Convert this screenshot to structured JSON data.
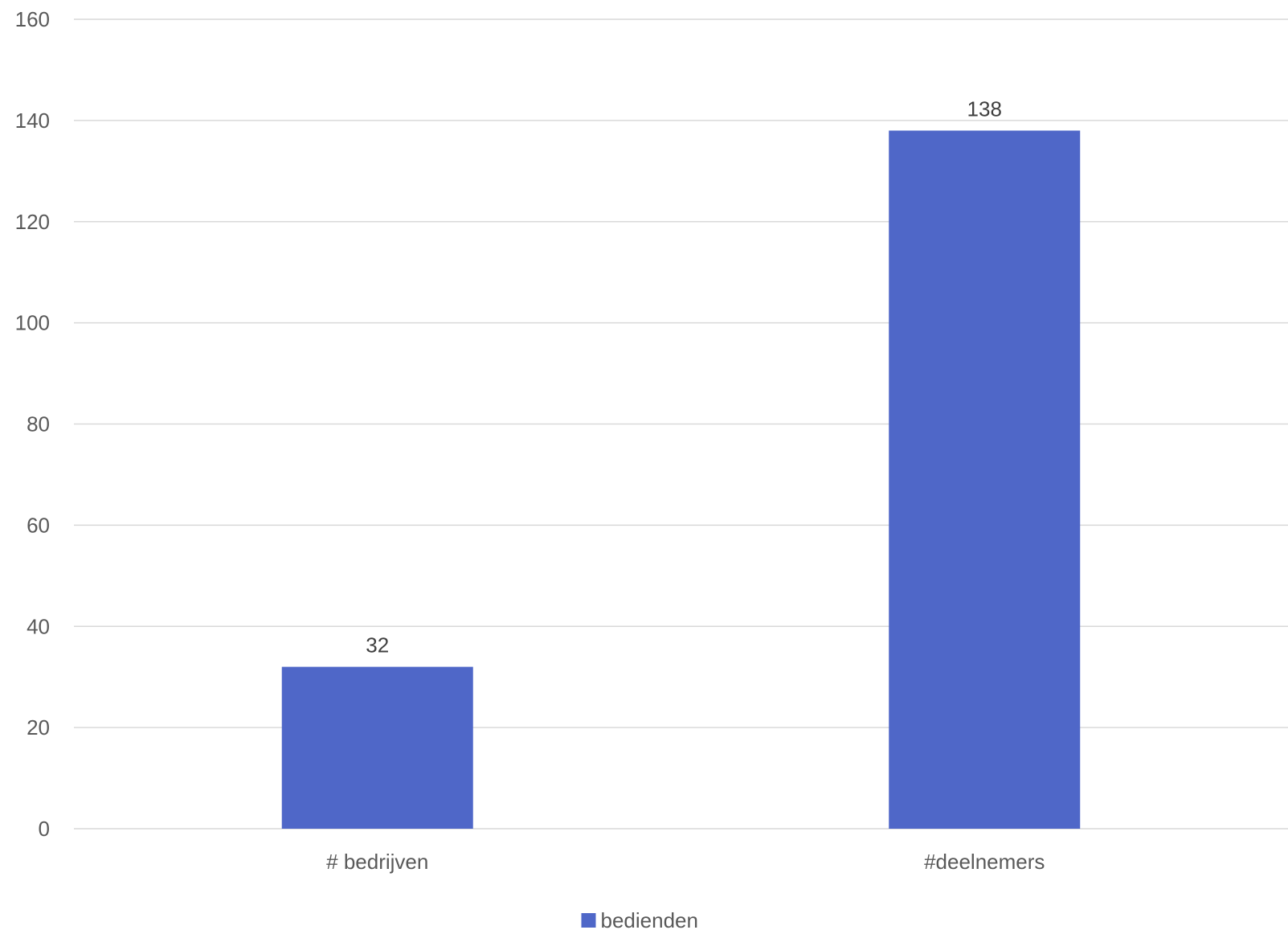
{
  "chart_data": {
    "type": "bar",
    "title": "",
    "xlabel": "",
    "ylabel": "",
    "categories": [
      "# bedrijven",
      "#deelnemers"
    ],
    "series": [
      {
        "name": "bedienden",
        "values": [
          32,
          138
        ],
        "color": "#4f67c8"
      }
    ],
    "ylim": [
      0,
      160
    ],
    "yticks": [
      0,
      20,
      40,
      60,
      80,
      100,
      120,
      140,
      160
    ],
    "grid": true,
    "data_labels": [
      "32",
      "138"
    ],
    "legend": {
      "position": "bottom",
      "entries": [
        "bedienden"
      ]
    }
  }
}
